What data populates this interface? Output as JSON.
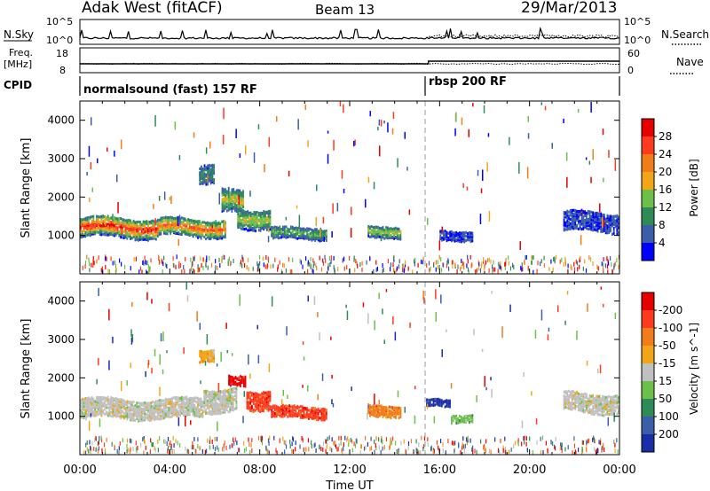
{
  "header": {
    "radar": "Adak West (fitACF)",
    "beam": "Beam 13",
    "date": "29/Mar/2013"
  },
  "top_panels": {
    "nsky_label": "N.Sky",
    "nsky_ticks": [
      "10^5",
      "10^0"
    ],
    "nsearch_label": "N.Search",
    "nsearch_ticks": [
      "10^5",
      "10^0"
    ],
    "freq_label_line1": "Freq.",
    "freq_label_line2": "[MHz]",
    "freq_ticks": [
      "18",
      "8"
    ],
    "nave_label": "Nave",
    "nave_ticks": [
      "60",
      "0"
    ],
    "cpid_label": "CPID",
    "cpid_segments": [
      {
        "label": "normalsound (fast) 157 RF",
        "start_hour": 0
      },
      {
        "label": "rbsp 200 RF",
        "start_hour": 15.5
      }
    ]
  },
  "chart_data": [
    {
      "type": "heatmap",
      "name": "power",
      "ylabel": "Slant Range [km]",
      "xlabel": "Time UT",
      "xlim": [
        0,
        24
      ],
      "ylim": [
        0,
        4500
      ],
      "x_ticks": [
        "00:00",
        "04:00",
        "08:00",
        "12:00",
        "16:00",
        "20:00",
        "00:00"
      ],
      "y_ticks": [
        1000,
        2000,
        3000,
        4000
      ],
      "colorbar": {
        "label": "Power [dB]",
        "ticks": [
          "4",
          "8",
          "12",
          "16",
          "20",
          "24",
          "28"
        ],
        "colors": [
          "#0000ff",
          "#3a5fa8",
          "#2e8b57",
          "#6cc04a",
          "#f2a516",
          "#f07c1a",
          "#ff3b1f",
          "#e60000"
        ]
      },
      "echo_regions": [
        {
          "t0": 0.0,
          "t1": 3.5,
          "r_center": 1250,
          "r_width": 500,
          "level": 6
        },
        {
          "t0": 3.5,
          "t1": 6.5,
          "r_center": 1250,
          "r_width": 450,
          "level": 5
        },
        {
          "t0": 5.3,
          "t1": 6.0,
          "r_center": 2700,
          "r_width": 500,
          "level": 1
        },
        {
          "t0": 6.3,
          "t1": 7.3,
          "r_center": 1900,
          "r_width": 600,
          "level": 3
        },
        {
          "t0": 7.0,
          "t1": 8.5,
          "r_center": 1500,
          "r_width": 500,
          "level": 3
        },
        {
          "t0": 8.5,
          "t1": 11.0,
          "r_center": 1100,
          "r_width": 300,
          "level": 2
        },
        {
          "t0": 12.8,
          "t1": 14.3,
          "r_center": 1150,
          "r_width": 300,
          "level": 3
        },
        {
          "t0": 16.0,
          "t1": 17.5,
          "r_center": 1050,
          "r_width": 250,
          "level": 0
        },
        {
          "t0": 21.5,
          "t1": 24.0,
          "r_center": 1400,
          "r_width": 500,
          "level": 0
        }
      ],
      "ground_scatter_band": [
        100,
        500
      ]
    },
    {
      "type": "heatmap",
      "name": "velocity",
      "ylabel": "Slant Range [km]",
      "xlabel": "Time UT",
      "xlim": [
        0,
        24
      ],
      "ylim": [
        0,
        4500
      ],
      "x_ticks": [
        "00:00",
        "04:00",
        "08:00",
        "12:00",
        "16:00",
        "20:00",
        "00:00"
      ],
      "y_ticks": [
        1000,
        2000,
        3000,
        4000
      ],
      "colorbar": {
        "label": "Velocity [m s^-1]",
        "ticks": [
          "200",
          "100",
          "50",
          "15",
          "-15",
          "-50",
          "-100",
          "-200"
        ],
        "colors": [
          "#1a2ea8",
          "#3a5fa8",
          "#2e8b57",
          "#6cc04a",
          "#c0c0c0",
          "#f2a516",
          "#f07c1a",
          "#ff3b1f",
          "#e60000"
        ]
      },
      "echo_regions": [
        {
          "t0": 0.0,
          "t1": 5.5,
          "r_center": 1250,
          "r_width": 500,
          "color_index": 4
        },
        {
          "t0": 5.5,
          "t1": 7.0,
          "r_center": 1500,
          "r_width": 600,
          "color_index": 4
        },
        {
          "t0": 5.3,
          "t1": 6.0,
          "r_center": 2650,
          "r_width": 300,
          "color_index": 5
        },
        {
          "t0": 6.6,
          "t1": 7.4,
          "r_center": 1950,
          "r_width": 250,
          "color_index": 8
        },
        {
          "t0": 7.4,
          "t1": 8.5,
          "r_center": 1500,
          "r_width": 500,
          "color_index": 7
        },
        {
          "t0": 8.5,
          "t1": 11.0,
          "r_center": 1150,
          "r_width": 300,
          "color_index": 7
        },
        {
          "t0": 12.8,
          "t1": 14.3,
          "r_center": 1200,
          "r_width": 300,
          "color_index": 6
        },
        {
          "t0": 15.4,
          "t1": 16.5,
          "r_center": 1400,
          "r_width": 200,
          "color_index": 0
        },
        {
          "t0": 16.5,
          "t1": 17.5,
          "r_center": 1000,
          "r_width": 200,
          "color_index": 3
        },
        {
          "t0": 21.5,
          "t1": 24.0,
          "r_center": 1400,
          "r_width": 500,
          "color_index": 4
        }
      ],
      "ground_scatter_band": [
        100,
        500
      ]
    }
  ]
}
